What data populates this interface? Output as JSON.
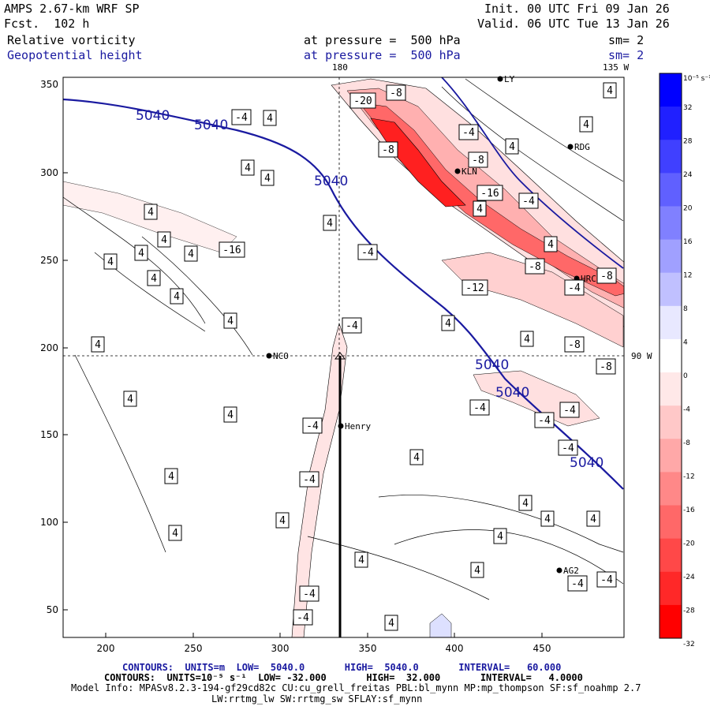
{
  "header": {
    "model": "AMPS 2.67-km WRF SP",
    "fcst": "Fcst.  102 h",
    "init": "Init. 00 UTC Fri 09 Jan 26",
    "valid": "Valid. 06 UTC Tue 13 Jan 26",
    "field1": "Relative vorticity",
    "field1_level": "at pressure =  500 hPa",
    "field1_sm": "sm= 2",
    "field2": "Geopotential height",
    "field2_level": "at pressure =  500 hPa",
    "field2_sm": "sm= 2"
  },
  "map": {
    "lon_top_180": "180",
    "lon_top_135w": "135 W",
    "lon_right_90w": "90 W",
    "x_ticks": [
      "200",
      "250",
      "300",
      "350",
      "400",
      "450"
    ],
    "y_ticks": [
      "300",
      "250",
      "200",
      "150",
      "100",
      "50"
    ],
    "stations": [
      {
        "name": "NCO"
      },
      {
        "name": "Henry"
      },
      {
        "name": "KLN"
      },
      {
        "name": "RDG"
      },
      {
        "name": "HRC"
      },
      {
        "name": "AG2"
      },
      {
        "name": "LY"
      }
    ],
    "height_labels": [
      "5040",
      "5040",
      "5040",
      "5040",
      "5040",
      "5040"
    ],
    "vort_labels": [
      "-20",
      "-8",
      "-8",
      "-4",
      "-4",
      "-8",
      "-16",
      "-4",
      "-4",
      "-16",
      "-12",
      "-8",
      "-4",
      "-8",
      "-8",
      "-8",
      "-4",
      "-4",
      "-4",
      "-4",
      "-4",
      "-4",
      "-4",
      "-4",
      "-4",
      "-4",
      "-4",
      "4",
      "4",
      "4",
      "4",
      "4",
      "4",
      "4",
      "4",
      "4",
      "4",
      "4",
      "4",
      "4",
      "4",
      "4",
      "4",
      "4",
      "4",
      "4",
      "4",
      "4",
      "4",
      "4",
      "4",
      "4",
      "4",
      "4",
      "4",
      "4",
      "4",
      "4",
      "4",
      "4"
    ]
  },
  "colorbar": {
    "units": "10⁻⁵ s⁻¹",
    "labels": [
      "32",
      "28",
      "24",
      "20",
      "16",
      "12",
      "8",
      "4",
      "0",
      "-4",
      "-8",
      "-12",
      "-16",
      "-20",
      "-24",
      "-28",
      "-32"
    ],
    "colors": [
      "#0000ff",
      "#2020ff",
      "#4040ff",
      "#6060ff",
      "#8080ff",
      "#a0a0ff",
      "#c0c0ff",
      "#e8e8ff",
      "#ffffff",
      "#ffe8e8",
      "#ffc8c8",
      "#ffa8a8",
      "#ff8888",
      "#ff6868",
      "#ff4848",
      "#ff2828",
      "#ff0000"
    ]
  },
  "footer": {
    "line1": "CONTOURS:  UNITS=m  LOW=  5040.0       HIGH=  5040.0       INTERVAL=   60.000",
    "line2": "CONTOURS:  UNITS=10⁻⁵ s⁻¹  LOW= -32.000       HIGH=  32.000       INTERVAL=   4.0000",
    "line3": "Model Info: MPASv8.2.3-194-gf29cd82c CU:cu_grell_freitas PBL:bl_mynn MP:mp_thompson SF:sf_noahmp 2.7",
    "line4": "LW:rrtmg_lw SW:rrtmg_sw SFLAY:sf_mynn"
  }
}
